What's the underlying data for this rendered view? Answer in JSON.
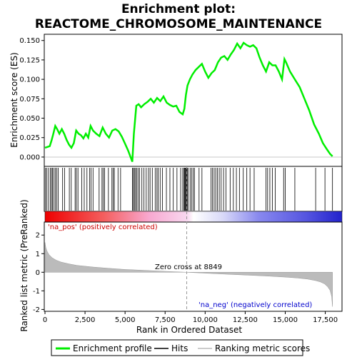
{
  "chart_data": {
    "type": "line",
    "title_line1": "Enrichment plot:",
    "title_line2": "REACTOME_CHROMOSOME_MAINTENANCE",
    "xlabel": "Rank in Ordered Dataset",
    "ylabel_top": "Enrichment score (ES)",
    "ylabel_bottom": "Ranked list metric (PreRanked)",
    "xlim": [
      0,
      18500
    ],
    "x_ticks": [
      0,
      2500,
      5000,
      7500,
      10000,
      12500,
      15000,
      17500
    ],
    "x_tick_labels": [
      "0",
      "2,500",
      "5,000",
      "7,500",
      "10,000",
      "12,500",
      "15,000",
      "17,500"
    ],
    "es_ylim": [
      -0.012,
      0.158
    ],
    "es_ticks": [
      0.0,
      0.025,
      0.05,
      0.075,
      0.1,
      0.125,
      0.15
    ],
    "es_tick_labels": [
      "0.000",
      "0.025",
      "0.050",
      "0.075",
      "0.100",
      "0.125",
      "0.150"
    ],
    "metric_ylim": [
      -2.1,
      2.7
    ],
    "metric_ticks": [
      2,
      1,
      0,
      -1,
      -2
    ],
    "metric_tick_labels": [
      "2",
      "1",
      "0",
      "-1",
      "-2"
    ],
    "zero_cross": 8849,
    "zero_cross_label": "Zero cross at 8849",
    "pos_label": "'na_pos' (positively correlated)",
    "neg_label": "'na_neg' (negatively correlated)",
    "n_genes": 17950,
    "series": [
      {
        "name": "Enrichment profile",
        "color": "#00ee00",
        "x": [
          0,
          150,
          300,
          420,
          520,
          640,
          760,
          900,
          1050,
          1200,
          1350,
          1500,
          1650,
          1800,
          1950,
          2100,
          2250,
          2400,
          2550,
          2700,
          2850,
          3000,
          3200,
          3400,
          3600,
          3800,
          4000,
          4200,
          4400,
          4600,
          4800,
          5000,
          5200,
          5450,
          5550,
          5700,
          5850,
          6000,
          6200,
          6400,
          6600,
          6800,
          7000,
          7200,
          7400,
          7600,
          7800,
          8000,
          8200,
          8400,
          8600,
          8700,
          8800,
          8900,
          9050,
          9200,
          9400,
          9600,
          9800,
          10000,
          10200,
          10400,
          10600,
          10800,
          11000,
          11200,
          11400,
          11600,
          11800,
          12000,
          12200,
          12400,
          12600,
          12800,
          13000,
          13200,
          13400,
          13600,
          13800,
          14000,
          14200,
          14400,
          14600,
          14800,
          14950,
          15050,
          15300,
          15600,
          15900,
          16200,
          16500,
          16800,
          17100,
          17350,
          17600,
          17800,
          17950
        ],
        "y": [
          0.012,
          0.013,
          0.014,
          0.022,
          0.03,
          0.04,
          0.036,
          0.03,
          0.036,
          0.03,
          0.022,
          0.016,
          0.012,
          0.018,
          0.034,
          0.03,
          0.028,
          0.024,
          0.03,
          0.025,
          0.04,
          0.034,
          0.03,
          0.027,
          0.038,
          0.03,
          0.025,
          0.034,
          0.036,
          0.033,
          0.026,
          0.017,
          0.008,
          -0.006,
          0.03,
          0.066,
          0.068,
          0.064,
          0.068,
          0.071,
          0.075,
          0.07,
          0.076,
          0.072,
          0.078,
          0.07,
          0.067,
          0.065,
          0.066,
          0.058,
          0.055,
          0.062,
          0.08,
          0.092,
          0.1,
          0.106,
          0.112,
          0.116,
          0.12,
          0.11,
          0.102,
          0.108,
          0.112,
          0.122,
          0.128,
          0.13,
          0.125,
          0.132,
          0.138,
          0.146,
          0.14,
          0.147,
          0.144,
          0.142,
          0.144,
          0.14,
          0.128,
          0.118,
          0.11,
          0.122,
          0.118,
          0.118,
          0.11,
          0.1,
          0.126,
          0.122,
          0.11,
          0.1,
          0.09,
          0.075,
          0.06,
          0.042,
          0.03,
          0.018,
          0.01,
          0.004,
          0.001
        ]
      }
    ],
    "hits": [
      30,
      110,
      220,
      330,
      410,
      470,
      560,
      640,
      730,
      820,
      1100,
      1220,
      1520,
      1640,
      1880,
      1960,
      2060,
      2300,
      2450,
      2620,
      2780,
      2880,
      3000,
      3380,
      3560,
      3640,
      3720,
      3960,
      4180,
      4260,
      4330,
      4560,
      4720,
      5460,
      5520,
      5580,
      5650,
      5730,
      5810,
      5900,
      6050,
      6180,
      6320,
      6460,
      6560,
      6700,
      6880,
      6990,
      7070,
      7190,
      7330,
      7580,
      7800,
      8010,
      8240,
      8470,
      8600,
      8680,
      8720,
      8760,
      8800,
      8840,
      8880,
      8930,
      9060,
      9150,
      9250,
      9330,
      9620,
      9800,
      10370,
      10460,
      10560,
      10660,
      10760,
      10880,
      11000,
      11150,
      11300,
      11560,
      11760,
      11950,
      12140,
      12380,
      12600,
      12800,
      13060,
      13800,
      13900,
      14040,
      14200,
      14380,
      14900,
      15000,
      15600,
      16900,
      17480,
      17950
    ],
    "metric_curve": {
      "x": [
        0,
        50,
        120,
        250,
        450,
        700,
        1000,
        1500,
        2000,
        3000,
        4000,
        5000,
        6000,
        7000,
        8000,
        8849,
        10000,
        11000,
        12000,
        13000,
        14000,
        15000,
        15800,
        16400,
        16900,
        17200,
        17450,
        17650,
        17800,
        17900,
        17950
      ],
      "y": [
        1.6,
        1.35,
        1.15,
        0.95,
        0.78,
        0.65,
        0.55,
        0.45,
        0.37,
        0.28,
        0.21,
        0.15,
        0.11,
        0.07,
        0.03,
        0.0,
        -0.05,
        -0.09,
        -0.13,
        -0.17,
        -0.21,
        -0.26,
        -0.31,
        -0.37,
        -0.45,
        -0.52,
        -0.62,
        -0.78,
        -0.98,
        -1.3,
        -1.85
      ]
    }
  },
  "legend": {
    "items": [
      {
        "label": "Enrichment profile",
        "color": "#00ee00"
      },
      {
        "label": "Hits",
        "color": "#000000"
      },
      {
        "label": "Ranking metric scores",
        "color": "#bbbbbb"
      }
    ]
  }
}
